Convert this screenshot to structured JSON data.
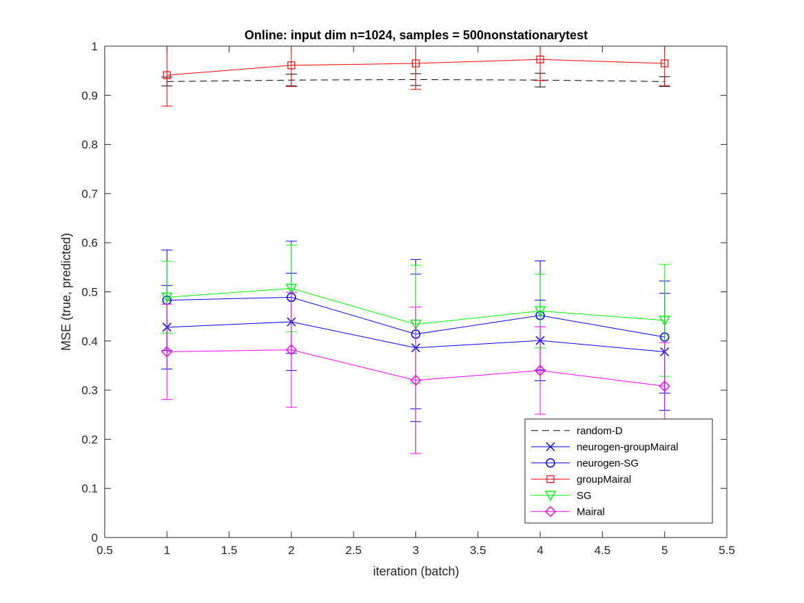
{
  "chart_data": {
    "type": "line",
    "title": "Online:  input dim n=1024, samples = 500nonstationarytest",
    "xlabel": "iteration (batch)",
    "ylabel": "MSE (true, predicted)",
    "xlim": [
      0.5,
      5.5
    ],
    "ylim": [
      0,
      1
    ],
    "xticks": [
      "0.5",
      "1",
      "1.5",
      "2",
      "2.5",
      "3",
      "3.5",
      "4",
      "4.5",
      "5",
      "5.5"
    ],
    "yticks": [
      "0",
      "0.1",
      "0.2",
      "0.3",
      "0.4",
      "0.5",
      "0.6",
      "0.7",
      "0.8",
      "0.9",
      "1"
    ],
    "grid": false,
    "legend_position": "bottom-right",
    "x": [
      1,
      2,
      3,
      4,
      5
    ],
    "series": [
      {
        "name": "random-D",
        "color": "#000000",
        "dash": "dashed",
        "marker": "none",
        "values": [
          0.928,
          0.931,
          0.932,
          0.931,
          0.928
        ],
        "errors": [
          0.009,
          0.012,
          0.012,
          0.014,
          0.01
        ]
      },
      {
        "name": "neurogen-groupMairal",
        "color": "#0000ff",
        "dash": "solid",
        "marker": "x",
        "values": [
          0.428,
          0.439,
          0.386,
          0.401,
          0.378
        ],
        "errors": [
          0.085,
          0.099,
          0.15,
          0.082,
          0.119
        ]
      },
      {
        "name": "neurogen-SG",
        "color": "#0000ff",
        "dash": "solid",
        "marker": "circle",
        "values": [
          0.483,
          0.489,
          0.414,
          0.452,
          0.408
        ],
        "errors": [
          0.102,
          0.114,
          0.152,
          0.111,
          0.114
        ]
      },
      {
        "name": "groupMairal",
        "color": "#ff0000",
        "dash": "solid",
        "marker": "square",
        "values": [
          0.941,
          0.961,
          0.965,
          0.973,
          0.965
        ],
        "errors": [
          0.063,
          0.043,
          0.053,
          0.043,
          0.045
        ]
      },
      {
        "name": "SG",
        "color": "#00ff00",
        "dash": "solid",
        "marker": "triangle-down",
        "values": [
          0.489,
          0.507,
          0.434,
          0.461,
          0.442
        ],
        "errors": [
          0.073,
          0.088,
          0.12,
          0.075,
          0.114
        ]
      },
      {
        "name": "Mairal",
        "color": "#ff00ff",
        "dash": "solid",
        "marker": "diamond",
        "values": [
          0.378,
          0.382,
          0.32,
          0.34,
          0.308
        ],
        "errors": [
          0.097,
          0.117,
          0.149,
          0.089,
          0.089
        ]
      }
    ]
  }
}
